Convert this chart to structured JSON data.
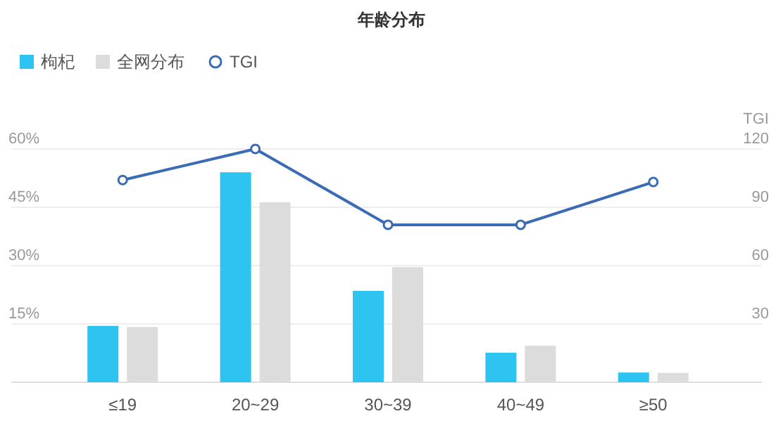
{
  "chart_data": {
    "type": "bar",
    "title": "年龄分布",
    "y2label": "TGI",
    "categories": [
      "≤19",
      "20~29",
      "30~39",
      "40~49",
      "≥50"
    ],
    "series": [
      {
        "name": "枸杞",
        "color": "#2ec4f1",
        "values": [
          14.5,
          54,
          23.5,
          7.6,
          2.5
        ]
      },
      {
        "name": "全网分布",
        "color": "#dcdcdc",
        "values": [
          14.2,
          46.3,
          29.6,
          9.4,
          2.4
        ]
      },
      {
        "name": "TGI",
        "type": "line",
        "axis": "y2",
        "color": "#3a6bb5",
        "marker": "circle",
        "values": [
          104,
          120,
          81,
          81,
          103
        ]
      }
    ],
    "ylim": [
      0,
      60
    ],
    "yticks": [
      {
        "value": 15,
        "label": "15%"
      },
      {
        "value": 30,
        "label": "30%"
      },
      {
        "value": 45,
        "label": "45%"
      },
      {
        "value": 60,
        "label": "60%"
      }
    ],
    "y2lim": [
      0,
      120
    ],
    "y2ticks": [
      30,
      60,
      90,
      120
    ],
    "grid": "y",
    "legend": "top left"
  }
}
